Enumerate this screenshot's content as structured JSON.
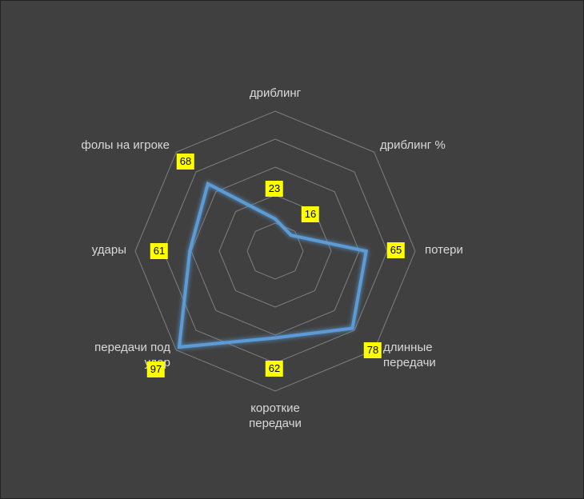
{
  "chart_data": {
    "type": "radar",
    "categories": [
      "дриблинг",
      "дриблинг %",
      "потери",
      "длинные передачи",
      "короткие передачи",
      "передачи под удар",
      "удары",
      "фолы на игроке"
    ],
    "values": [
      23,
      16,
      65,
      78,
      62,
      97,
      61,
      68
    ],
    "color": "#5b9bd5",
    "rlim": [
      0,
      100
    ],
    "rticks": [
      20,
      40,
      60,
      80,
      100
    ],
    "grid": true
  }
}
